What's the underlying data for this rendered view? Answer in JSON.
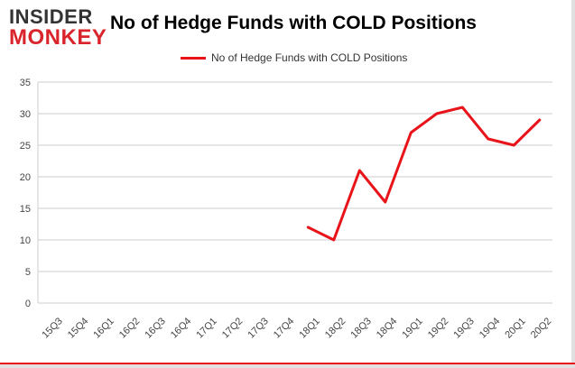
{
  "logo": {
    "line1": "INSIDER",
    "line2": "MONKEY"
  },
  "title": "No of Hedge Funds with COLD Positions",
  "colors": {
    "series": "#e8141a",
    "grid": "#cccccc",
    "axis_text": "#444444",
    "brand_red": "#d9242b"
  },
  "chart_data": {
    "type": "line",
    "title": "No of Hedge Funds with COLD Positions",
    "xlabel": "",
    "ylabel": "",
    "ylim": [
      0,
      35
    ],
    "yticks": [
      0,
      5,
      10,
      15,
      20,
      25,
      30,
      35
    ],
    "grid": true,
    "legend_position": "top-center",
    "categories": [
      "15Q3",
      "15Q4",
      "16Q1",
      "16Q2",
      "16Q3",
      "16Q4",
      "17Q1",
      "17Q2",
      "17Q3",
      "17Q4",
      "18Q1",
      "18Q2",
      "18Q3",
      "18Q4",
      "19Q1",
      "19Q2",
      "19Q3",
      "19Q4",
      "20Q1",
      "20Q2"
    ],
    "series": [
      {
        "name": "No of Hedge Funds with COLD Positions",
        "values": [
          null,
          null,
          null,
          null,
          null,
          null,
          null,
          null,
          null,
          null,
          12,
          10,
          21,
          16,
          27,
          30,
          31,
          26,
          25,
          29
        ]
      }
    ]
  }
}
